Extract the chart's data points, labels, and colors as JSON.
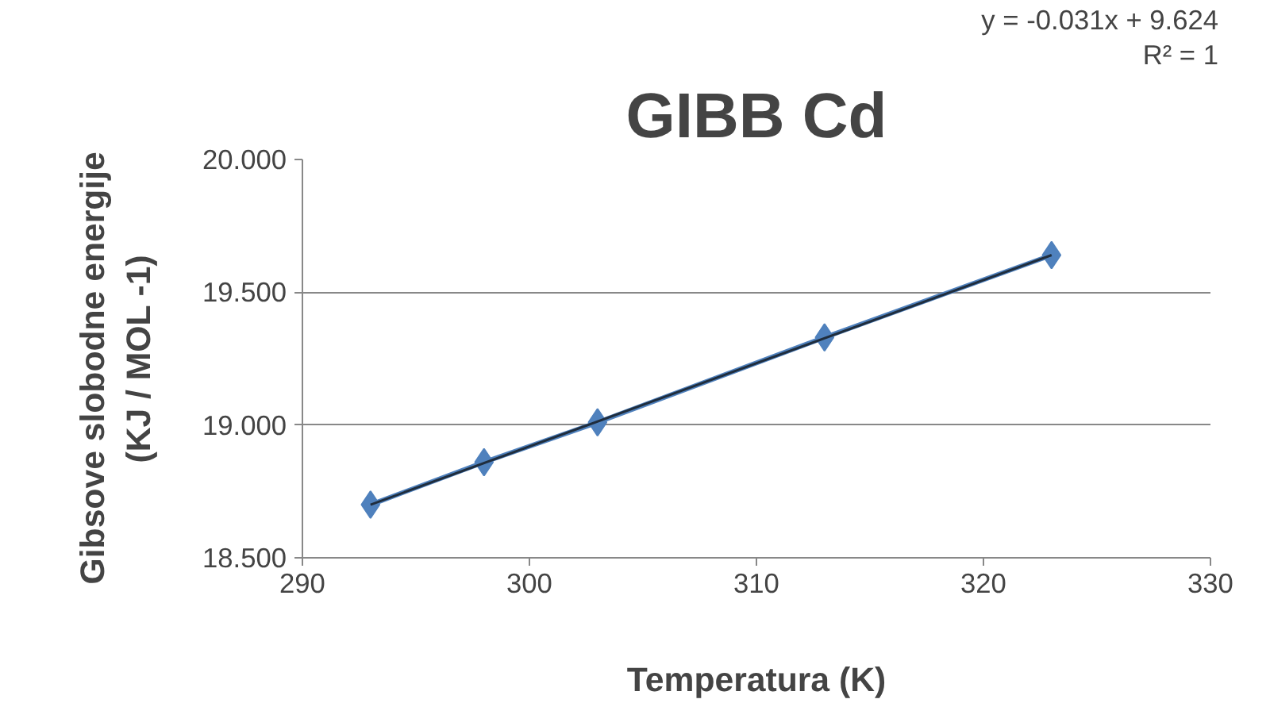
{
  "chart_data": {
    "type": "line",
    "title": "GIBB Cd",
    "xlabel": "Temperatura (K)",
    "ylabel": "Gibsove  slobodne  energije\n(KJ / MOL -1)",
    "x": [
      293,
      298,
      303,
      313,
      323
    ],
    "series": [
      {
        "color": "#4f81bd",
        "values": [
          18.7,
          18.86,
          19.01,
          19.33,
          19.64
        ],
        "marker": "diamond"
      },
      {
        "type": "line",
        "color": "#1f2d3d",
        "x": [
          293,
          323
        ],
        "values": [
          18.7,
          19.64
        ],
        "marker": "none"
      }
    ],
    "xlim": [
      290,
      330
    ],
    "xticks": [
      290,
      300,
      310,
      320,
      330
    ],
    "ylim": [
      18.5,
      20.0
    ],
    "yticks": [
      {
        "value": 18.5,
        "label": "18.500"
      },
      {
        "value": 19.0,
        "label": "19.000"
      },
      {
        "value": 19.5,
        "label": "19.500"
      },
      {
        "value": 20.0,
        "label": "20.000"
      }
    ],
    "grid": "y",
    "annotations": [
      "y = -0.031x + 9.624",
      "R² = 1"
    ]
  }
}
